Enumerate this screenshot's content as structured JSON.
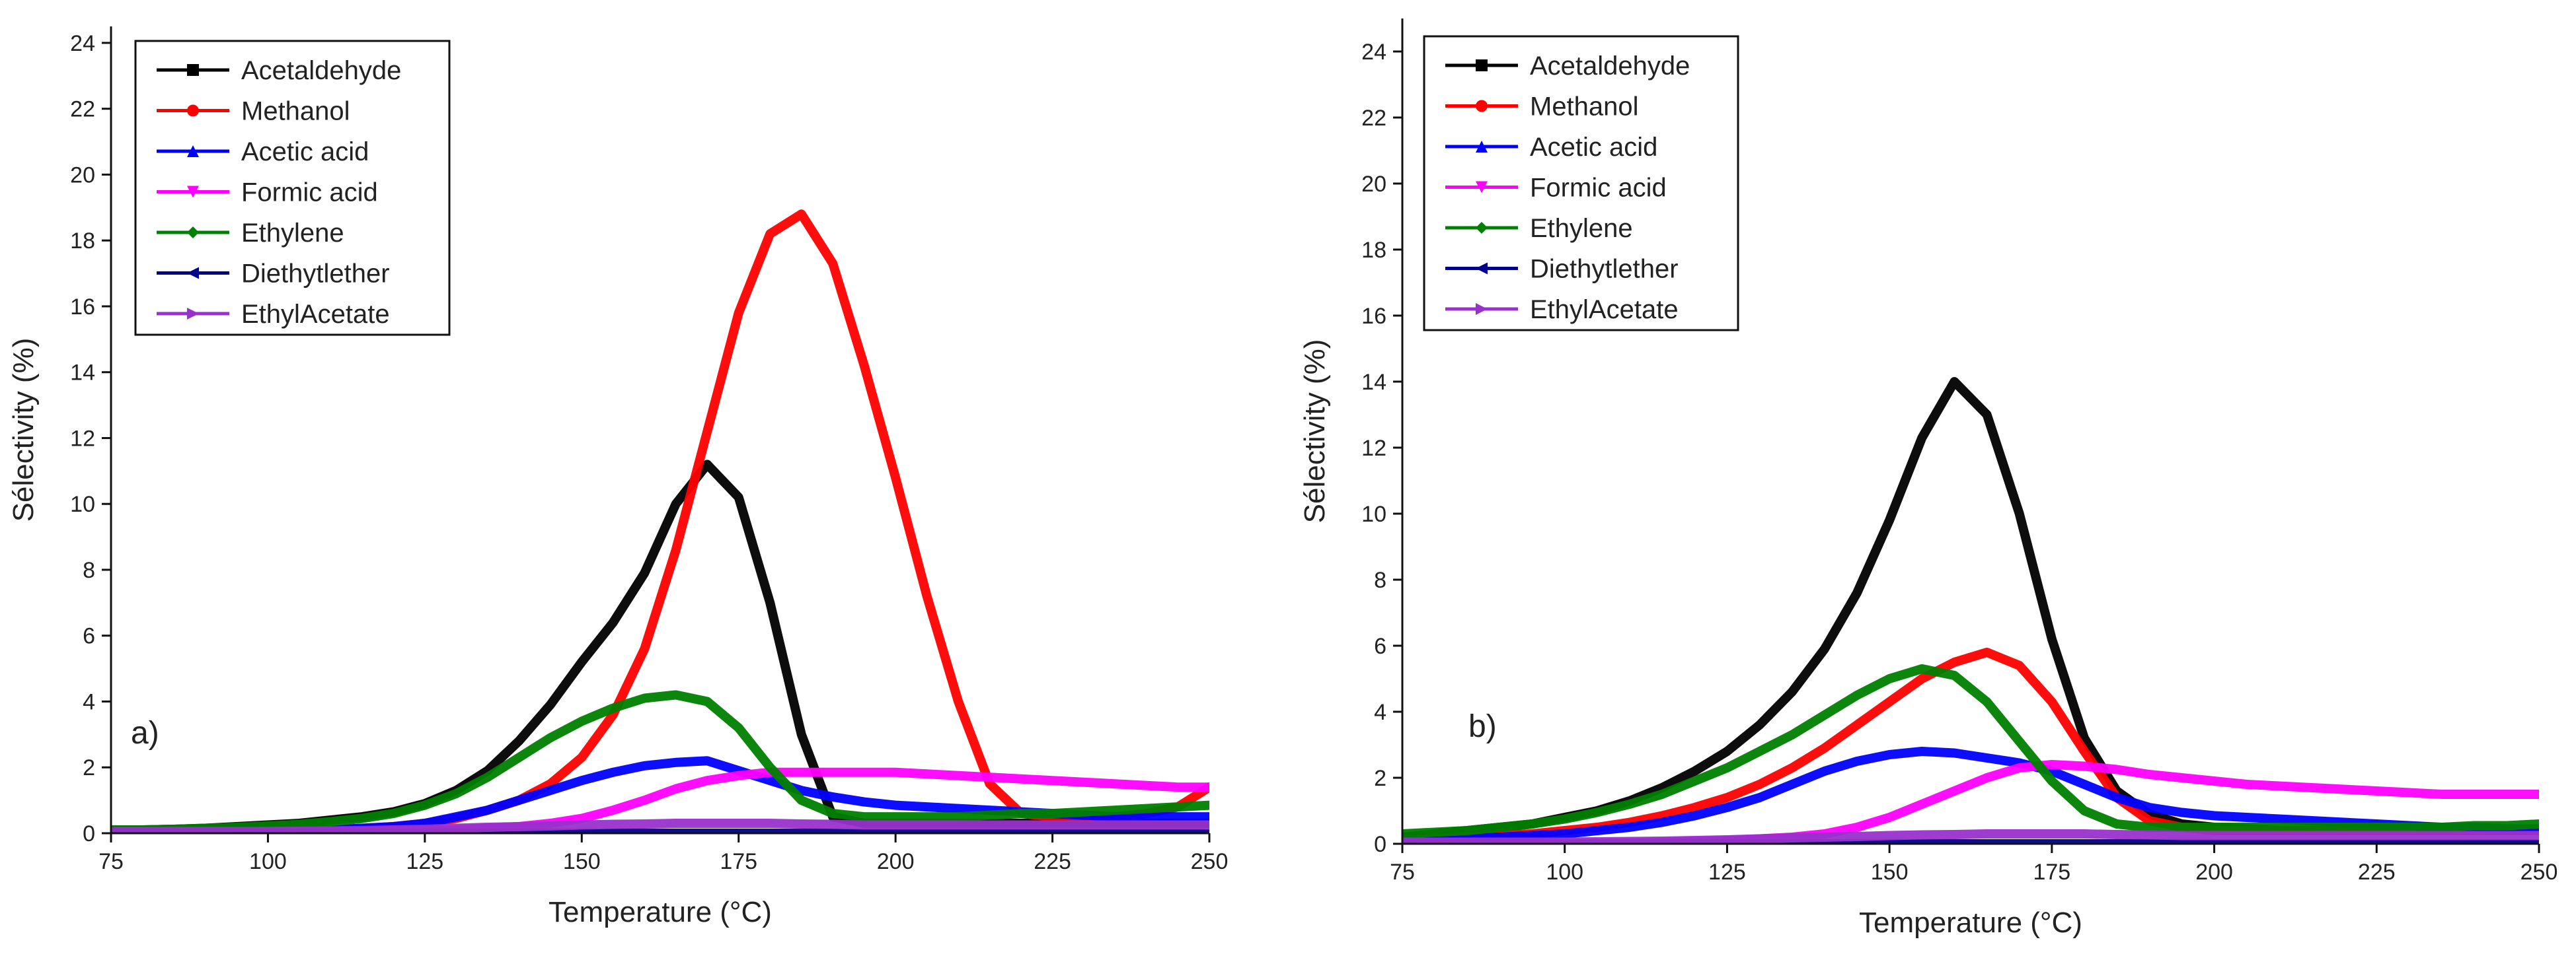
{
  "chart_data": [
    {
      "type": "line",
      "panel_label": "a)",
      "xlabel": "Temperature (°C)",
      "ylabel": "Sélectivity (%)",
      "xlim": [
        75,
        250
      ],
      "ylim": [
        0,
        24.5
      ],
      "xticks": [
        75,
        100,
        125,
        150,
        175,
        200,
        225,
        250
      ],
      "yticks": [
        0,
        2,
        4,
        6,
        8,
        10,
        12,
        14,
        16,
        18,
        20,
        22,
        24
      ],
      "legend_position": "top-left",
      "x": [
        75,
        80,
        85,
        90,
        95,
        100,
        105,
        110,
        115,
        120,
        125,
        130,
        135,
        140,
        145,
        150,
        155,
        160,
        165,
        170,
        175,
        180,
        185,
        190,
        195,
        200,
        205,
        210,
        215,
        220,
        225,
        230,
        235,
        240,
        245,
        250
      ],
      "series": [
        {
          "name": "Acetaldehyde",
          "color": "#000000",
          "marker": "square",
          "values": [
            0.1,
            0.1,
            0.12,
            0.15,
            0.2,
            0.25,
            0.3,
            0.4,
            0.5,
            0.65,
            0.9,
            1.3,
            1.9,
            2.8,
            3.9,
            5.2,
            6.4,
            7.9,
            10.0,
            11.2,
            10.2,
            7.0,
            3.0,
            0.5,
            0.3,
            0.3,
            0.3,
            0.3,
            0.3,
            0.3,
            0.3,
            0.3,
            0.3,
            0.3,
            0.3,
            0.3
          ]
        },
        {
          "name": "Methanol",
          "color": "#ff0000",
          "marker": "circle",
          "values": [
            0.05,
            0.05,
            0.05,
            0.05,
            0.05,
            0.06,
            0.08,
            0.1,
            0.15,
            0.2,
            0.3,
            0.45,
            0.7,
            1.0,
            1.5,
            2.3,
            3.6,
            5.6,
            8.6,
            12.2,
            15.8,
            18.2,
            18.8,
            17.3,
            14.2,
            10.8,
            7.2,
            4.0,
            1.5,
            0.6,
            0.5,
            0.5,
            0.5,
            0.6,
            0.8,
            1.4
          ]
        },
        {
          "name": "Acetic acid",
          "color": "#0000ff",
          "marker": "triangle-up",
          "values": [
            0.05,
            0.05,
            0.05,
            0.05,
            0.05,
            0.06,
            0.08,
            0.1,
            0.15,
            0.2,
            0.3,
            0.5,
            0.7,
            1.0,
            1.3,
            1.6,
            1.85,
            2.05,
            2.15,
            2.2,
            1.9,
            1.6,
            1.3,
            1.1,
            0.95,
            0.85,
            0.8,
            0.75,
            0.7,
            0.65,
            0.6,
            0.55,
            0.5,
            0.5,
            0.5,
            0.5
          ]
        },
        {
          "name": "Formic acid",
          "color": "#ff00ff",
          "marker": "triangle-down",
          "values": [
            0.0,
            0.0,
            0.0,
            0.0,
            0.0,
            0.0,
            0.0,
            0.02,
            0.03,
            0.05,
            0.07,
            0.1,
            0.15,
            0.2,
            0.3,
            0.45,
            0.7,
            1.0,
            1.35,
            1.6,
            1.75,
            1.85,
            1.85,
            1.85,
            1.85,
            1.85,
            1.8,
            1.75,
            1.7,
            1.65,
            1.6,
            1.55,
            1.5,
            1.45,
            1.4,
            1.4
          ]
        },
        {
          "name": "Ethylene",
          "color": "#008000",
          "marker": "diamond",
          "values": [
            0.1,
            0.1,
            0.12,
            0.15,
            0.18,
            0.22,
            0.27,
            0.35,
            0.45,
            0.6,
            0.85,
            1.2,
            1.7,
            2.3,
            2.9,
            3.4,
            3.8,
            4.1,
            4.2,
            4.0,
            3.2,
            2.0,
            1.0,
            0.6,
            0.5,
            0.5,
            0.5,
            0.5,
            0.55,
            0.6,
            0.6,
            0.65,
            0.7,
            0.75,
            0.8,
            0.85
          ]
        },
        {
          "name": "Diethytlether",
          "color": "#00008b",
          "marker": "triangle-left",
          "values": [
            0.0,
            0.0,
            0.0,
            0.0,
            0.0,
            0.0,
            0.0,
            0.0,
            0.0,
            0.0,
            0.0,
            0.0,
            0.0,
            0.0,
            0.0,
            0.0,
            0.0,
            0.0,
            0.0,
            0.0,
            0.0,
            0.0,
            0.0,
            0.0,
            0.0,
            0.0,
            0.0,
            0.0,
            0.0,
            0.0,
            0.0,
            0.0,
            0.0,
            0.0,
            0.0,
            0.0
          ]
        },
        {
          "name": "EthylAcetate",
          "color": "#9932cc",
          "marker": "triangle-right",
          "values": [
            0.05,
            0.05,
            0.05,
            0.05,
            0.05,
            0.05,
            0.06,
            0.07,
            0.08,
            0.1,
            0.12,
            0.15,
            0.18,
            0.2,
            0.22,
            0.25,
            0.27,
            0.28,
            0.3,
            0.3,
            0.3,
            0.3,
            0.28,
            0.27,
            0.25,
            0.25,
            0.25,
            0.25,
            0.25,
            0.25,
            0.25,
            0.25,
            0.25,
            0.25,
            0.25,
            0.25
          ]
        }
      ]
    },
    {
      "type": "line",
      "panel_label": "b)",
      "xlabel": "Temperature (°C)",
      "ylabel": "Sélectivity (%)",
      "xlim": [
        75,
        250
      ],
      "ylim": [
        0,
        25
      ],
      "xticks": [
        75,
        100,
        125,
        150,
        175,
        200,
        225,
        250
      ],
      "yticks": [
        0,
        2,
        4,
        6,
        8,
        10,
        12,
        14,
        16,
        18,
        20,
        22,
        24
      ],
      "legend_position": "top-left",
      "x": [
        75,
        80,
        85,
        90,
        95,
        100,
        105,
        110,
        115,
        120,
        125,
        130,
        135,
        140,
        145,
        150,
        155,
        160,
        165,
        170,
        175,
        180,
        185,
        190,
        195,
        200,
        205,
        210,
        215,
        220,
        225,
        230,
        235,
        240,
        245,
        250
      ],
      "series": [
        {
          "name": "Acetaldehyde",
          "color": "#000000",
          "marker": "square",
          "values": [
            0.2,
            0.3,
            0.4,
            0.5,
            0.6,
            0.8,
            1.0,
            1.3,
            1.7,
            2.2,
            2.8,
            3.6,
            4.6,
            5.9,
            7.6,
            9.8,
            12.3,
            14.0,
            13.0,
            10.0,
            6.2,
            3.2,
            1.6,
            0.9,
            0.6,
            0.5,
            0.45,
            0.4,
            0.4,
            0.4,
            0.4,
            0.4,
            0.4,
            0.4,
            0.4,
            0.4
          ]
        },
        {
          "name": "Methanol",
          "color": "#ff0000",
          "marker": "circle",
          "values": [
            0.1,
            0.15,
            0.2,
            0.25,
            0.3,
            0.4,
            0.5,
            0.65,
            0.85,
            1.1,
            1.4,
            1.8,
            2.3,
            2.9,
            3.6,
            4.3,
            5.0,
            5.5,
            5.8,
            5.4,
            4.3,
            2.8,
            1.4,
            0.7,
            0.5,
            0.4,
            0.4,
            0.4,
            0.4,
            0.4,
            0.4,
            0.4,
            0.4,
            0.4,
            0.4,
            0.4
          ]
        },
        {
          "name": "Acetic acid",
          "color": "#0000ff",
          "marker": "triangle-up",
          "values": [
            0.1,
            0.1,
            0.15,
            0.2,
            0.25,
            0.3,
            0.4,
            0.5,
            0.65,
            0.85,
            1.1,
            1.4,
            1.8,
            2.2,
            2.5,
            2.7,
            2.8,
            2.75,
            2.6,
            2.45,
            2.2,
            1.8,
            1.4,
            1.1,
            0.95,
            0.85,
            0.8,
            0.75,
            0.7,
            0.65,
            0.6,
            0.55,
            0.5,
            0.5,
            0.45,
            0.45
          ]
        },
        {
          "name": "Formic acid",
          "color": "#ff00ff",
          "marker": "triangle-down",
          "values": [
            0.0,
            0.0,
            0.0,
            0.0,
            0.0,
            0.0,
            0.02,
            0.03,
            0.05,
            0.07,
            0.1,
            0.15,
            0.2,
            0.3,
            0.5,
            0.8,
            1.2,
            1.6,
            2.0,
            2.3,
            2.4,
            2.35,
            2.25,
            2.1,
            2.0,
            1.9,
            1.8,
            1.75,
            1.7,
            1.65,
            1.6,
            1.55,
            1.5,
            1.5,
            1.5,
            1.5
          ]
        },
        {
          "name": "Ethylene",
          "color": "#008000",
          "marker": "diamond",
          "values": [
            0.3,
            0.35,
            0.4,
            0.5,
            0.6,
            0.75,
            0.95,
            1.2,
            1.5,
            1.9,
            2.3,
            2.8,
            3.3,
            3.9,
            4.5,
            5.0,
            5.3,
            5.1,
            4.3,
            3.1,
            1.9,
            1.0,
            0.6,
            0.5,
            0.5,
            0.5,
            0.5,
            0.5,
            0.5,
            0.5,
            0.5,
            0.5,
            0.5,
            0.55,
            0.55,
            0.6
          ]
        },
        {
          "name": "Diethytlether",
          "color": "#00008b",
          "marker": "triangle-left",
          "values": [
            0.0,
            0.0,
            0.0,
            0.0,
            0.0,
            0.0,
            0.0,
            0.0,
            0.0,
            0.0,
            0.0,
            0.0,
            0.0,
            0.0,
            0.0,
            0.0,
            0.0,
            0.0,
            0.0,
            0.0,
            0.0,
            0.0,
            0.0,
            0.0,
            0.0,
            0.0,
            0.0,
            0.0,
            0.0,
            0.0,
            0.0,
            0.0,
            0.0,
            0.0,
            0.0,
            0.0
          ]
        },
        {
          "name": "EthylAcetate",
          "color": "#9932cc",
          "marker": "triangle-right",
          "values": [
            0.05,
            0.05,
            0.05,
            0.05,
            0.05,
            0.05,
            0.06,
            0.07,
            0.08,
            0.1,
            0.12,
            0.15,
            0.18,
            0.2,
            0.22,
            0.25,
            0.27,
            0.28,
            0.3,
            0.3,
            0.3,
            0.3,
            0.28,
            0.27,
            0.25,
            0.25,
            0.25,
            0.25,
            0.25,
            0.25,
            0.25,
            0.25,
            0.25,
            0.25,
            0.25,
            0.25
          ]
        }
      ]
    }
  ]
}
